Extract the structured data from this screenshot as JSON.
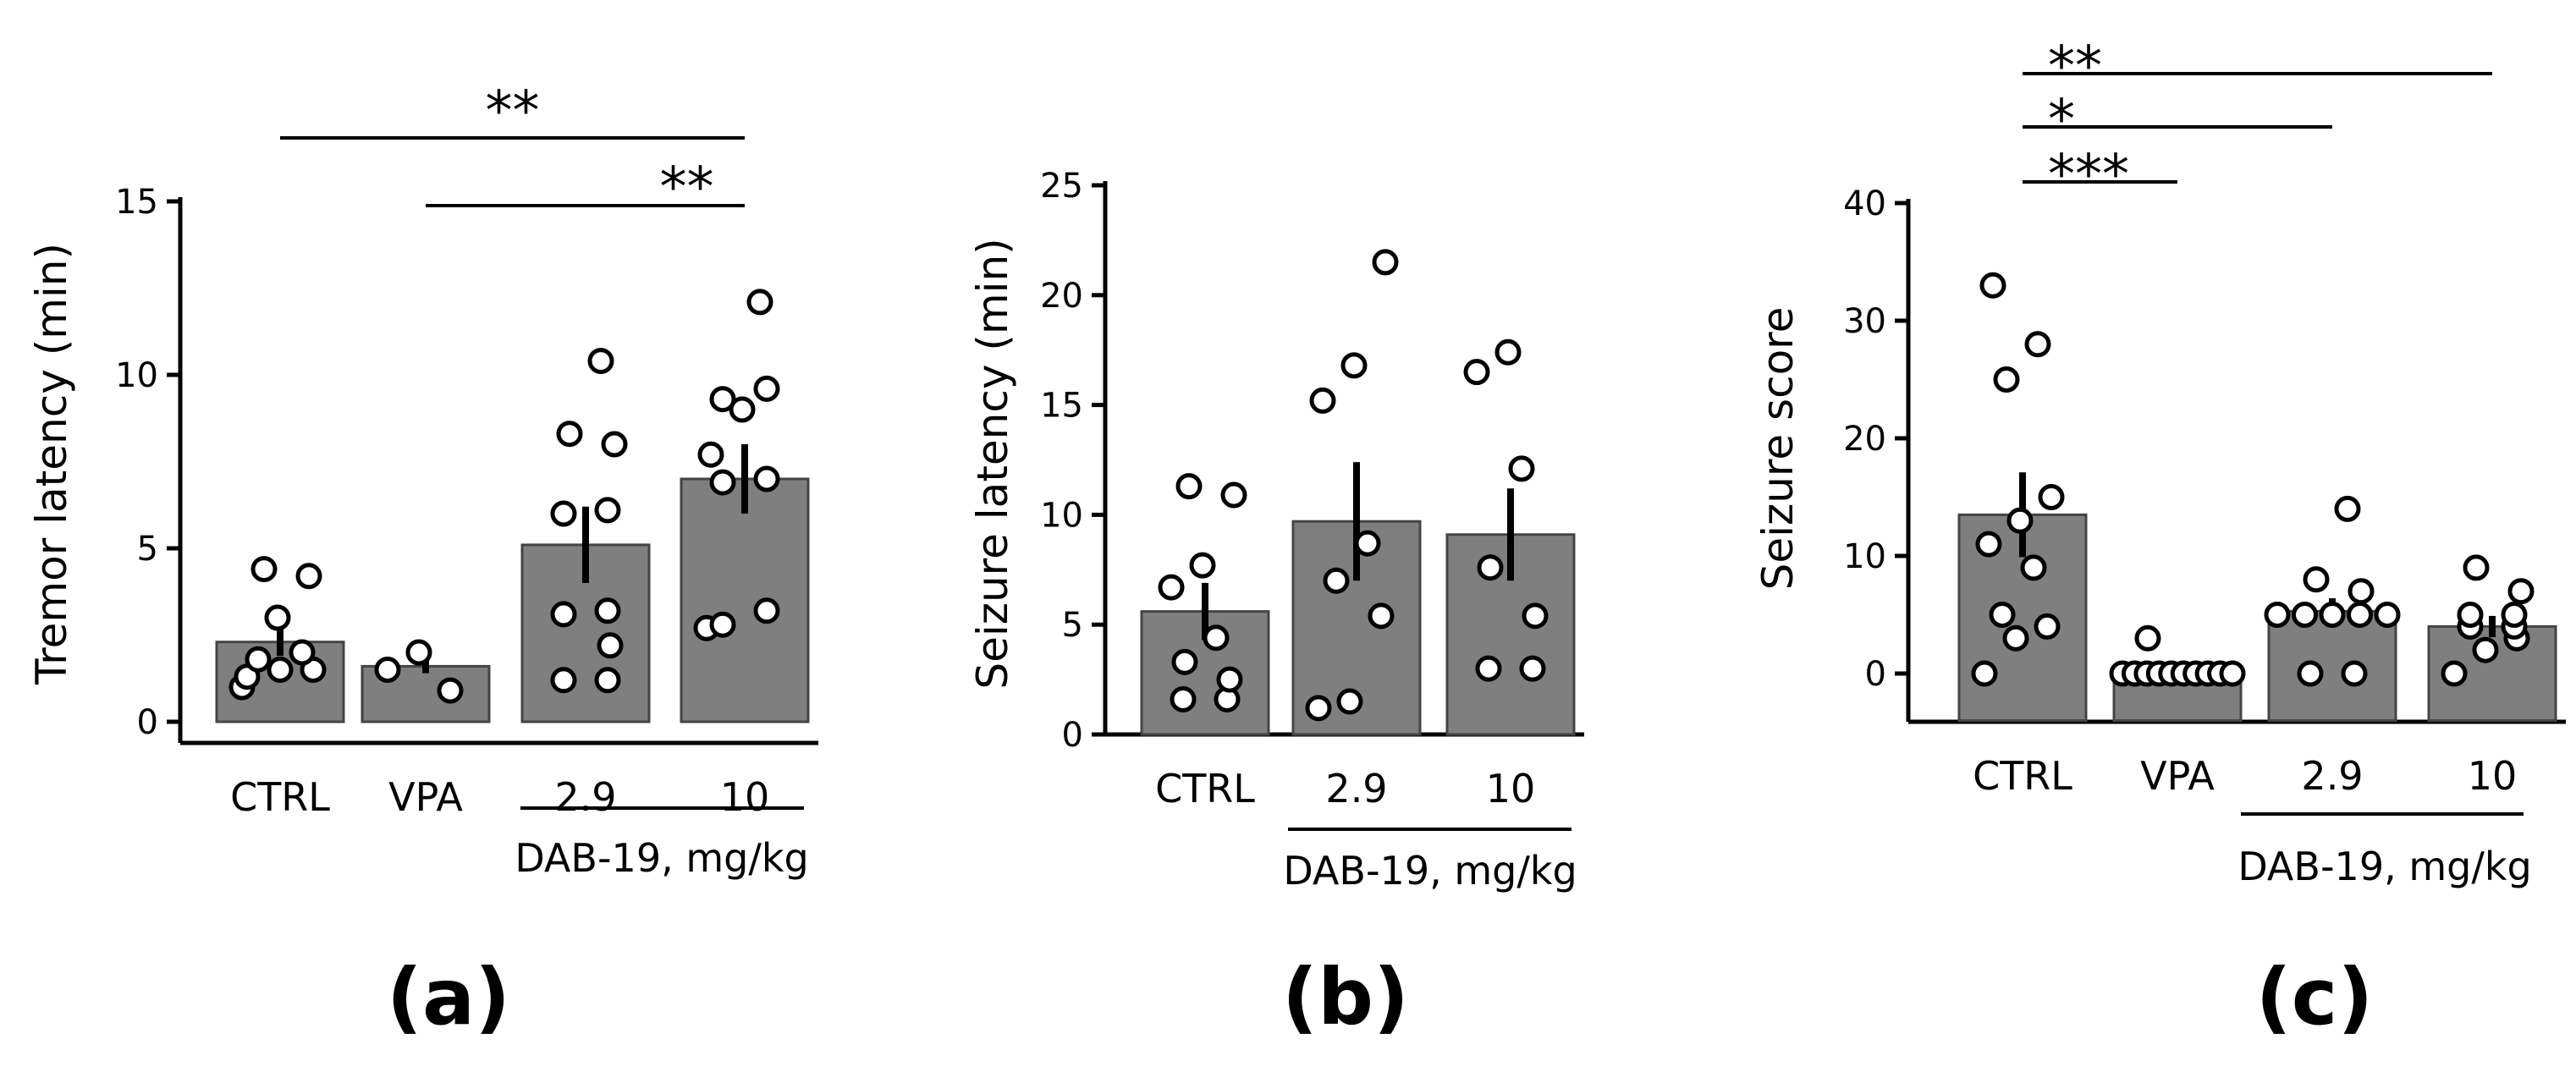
{
  "chart_data": [
    {
      "type": "bar",
      "panel_label": "(a)",
      "ylabel": "Tremor latency (min)",
      "ylim": [
        0,
        15
      ],
      "yticks": [
        "0",
        "5",
        "10",
        "15"
      ],
      "categories": [
        "CTRL",
        "VPA",
        "2.9",
        "10"
      ],
      "group_label": "DAB-19, mg/kg",
      "group_spans": [
        "2.9",
        "10"
      ],
      "means": [
        2.3,
        1.6,
        5.1,
        7.0
      ],
      "sem": [
        0.4,
        0.2,
        1.1,
        1.0
      ],
      "points": [
        [
          1.0,
          1.3,
          1.5,
          1.5,
          1.8,
          2.0,
          3.0,
          4.2,
          4.4
        ],
        [
          1.5,
          2.0,
          0.9
        ],
        [
          1.2,
          1.2,
          2.2,
          3.1,
          3.2,
          6.0,
          6.1,
          8.0,
          8.3,
          10.4
        ],
        [
          2.7,
          2.8,
          3.2,
          6.9,
          7.0,
          7.7,
          9.0,
          9.3,
          9.6,
          12.1
        ]
      ],
      "significance": [
        {
          "from": "CTRL",
          "to": "10",
          "label": "**"
        },
        {
          "from": "VPA",
          "to": "10",
          "label": "**"
        }
      ]
    },
    {
      "type": "bar",
      "panel_label": "(b)",
      "ylabel": "Seizure latency (min)",
      "ylim": [
        0,
        25
      ],
      "yticks": [
        "0",
        "5",
        "10",
        "15",
        "20",
        "25"
      ],
      "categories": [
        "CTRL",
        "2.9",
        "10"
      ],
      "group_label": "DAB-19, mg/kg",
      "group_spans": [
        "2.9",
        "10"
      ],
      "means": [
        5.6,
        9.7,
        9.1
      ],
      "sem": [
        1.3,
        2.7,
        2.1
      ],
      "points": [
        [
          1.6,
          1.6,
          2.5,
          3.3,
          4.4,
          6.7,
          7.7,
          10.9,
          11.3
        ],
        [
          1.2,
          1.5,
          5.4,
          7.0,
          8.7,
          15.2,
          16.8,
          21.5
        ],
        [
          3.0,
          3.0,
          5.4,
          7.6,
          12.1,
          16.5,
          17.4
        ]
      ],
      "significance": []
    },
    {
      "type": "bar",
      "panel_label": "(c)",
      "ylabel": "Seizure score",
      "ylim": [
        -4,
        42
      ],
      "yticks": [
        "0",
        "10",
        "20",
        "30",
        "40"
      ],
      "categories": [
        "CTRL",
        "VPA",
        "2.9",
        "10"
      ],
      "group_label": "DAB-19, mg/kg",
      "group_spans": [
        "2.9",
        "10"
      ],
      "means": [
        13.5,
        0.4,
        5.3,
        4.0
      ],
      "sem": [
        3.6,
        0.3,
        1.1,
        0.9
      ],
      "points": [
        [
          0,
          3,
          4,
          5,
          9,
          11,
          13,
          15,
          25,
          28,
          33
        ],
        [
          0,
          0,
          0,
          0,
          0,
          0,
          0,
          0,
          0,
          0,
          3
        ],
        [
          0,
          0,
          5,
          5,
          5,
          5,
          5,
          7,
          8,
          14
        ],
        [
          0,
          2,
          3,
          4,
          4,
          5,
          5,
          7,
          9
        ]
      ],
      "significance": [
        {
          "from": "CTRL",
          "to": "VPA",
          "label": "***"
        },
        {
          "from": "CTRL",
          "to": "2.9",
          "label": "*"
        },
        {
          "from": "CTRL",
          "to": "10",
          "label": "**"
        }
      ]
    }
  ]
}
